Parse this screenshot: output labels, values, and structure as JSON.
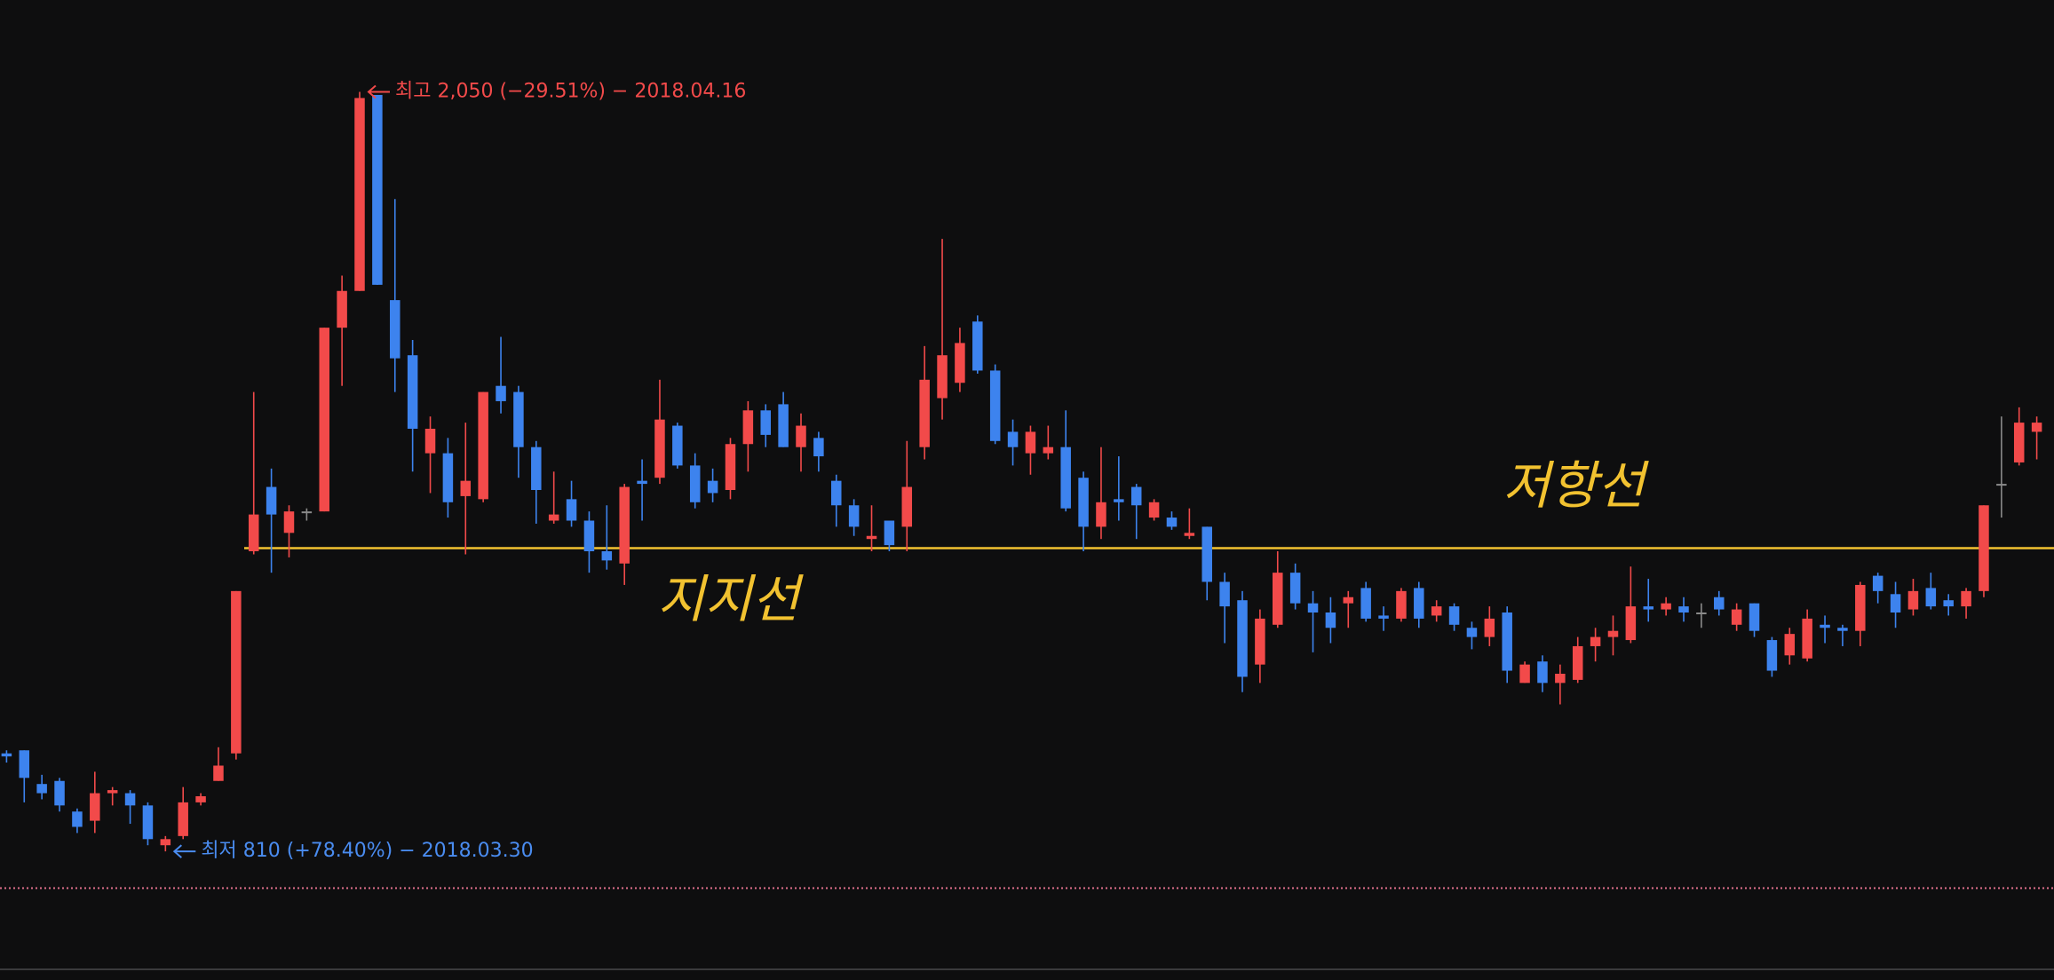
{
  "chart_data": {
    "type": "candlestick",
    "ylim": [
      600,
      2200
    ],
    "up_color": "#f24a4a",
    "down_color": "#3d83ee",
    "flat_color": "#8a8a8a",
    "open": [
      970,
      975,
      920,
      925,
      875,
      860,
      905,
      905,
      885,
      820,
      835,
      890,
      925,
      970,
      1300,
      1405,
      1330,
      1365,
      1365,
      1665,
      1725,
      2045,
      1710,
      1620,
      1460,
      1460,
      1390,
      1385,
      1570,
      1560,
      1470,
      1350,
      1385,
      1350,
      1300,
      1280,
      1415,
      1420,
      1505,
      1440,
      1415,
      1400,
      1475,
      1530,
      1540,
      1470,
      1485,
      1415,
      1375,
      1320,
      1350,
      1340,
      1470,
      1550,
      1575,
      1675,
      1595,
      1495,
      1460,
      1460,
      1470,
      1420,
      1340,
      1385,
      1405,
      1355,
      1355,
      1325,
      1340,
      1250,
      1220,
      1115,
      1180,
      1265,
      1215,
      1200,
      1215,
      1240,
      1195,
      1190,
      1240,
      1195,
      1210,
      1175,
      1160,
      1200,
      1085,
      1120,
      1085,
      1090,
      1145,
      1160,
      1155,
      1210,
      1205,
      1210,
      1200,
      1225,
      1180,
      1215,
      1155,
      1130,
      1125,
      1180,
      1175,
      1170,
      1260,
      1230,
      1205,
      1240,
      1220,
      1210,
      1235,
      1410,
      1445,
      1495
    ],
    "high": [
      975,
      975,
      935,
      930,
      880,
      940,
      915,
      910,
      890,
      835,
      915,
      905,
      980,
      1235,
      1560,
      1435,
      1375,
      1370,
      1665,
      1750,
      2050,
      2045,
      1875,
      1645,
      1520,
      1485,
      1510,
      1560,
      1650,
      1570,
      1480,
      1430,
      1415,
      1365,
      1375,
      1410,
      1450,
      1580,
      1510,
      1460,
      1435,
      1485,
      1545,
      1540,
      1560,
      1525,
      1495,
      1425,
      1385,
      1375,
      1350,
      1480,
      1635,
      1810,
      1665,
      1685,
      1605,
      1515,
      1505,
      1505,
      1530,
      1430,
      1470,
      1455,
      1410,
      1385,
      1365,
      1370,
      1340,
      1265,
      1235,
      1205,
      1300,
      1280,
      1235,
      1225,
      1235,
      1250,
      1210,
      1240,
      1250,
      1220,
      1215,
      1185,
      1210,
      1210,
      1120,
      1130,
      1115,
      1160,
      1175,
      1195,
      1275,
      1255,
      1225,
      1225,
      1215,
      1235,
      1215,
      1215,
      1160,
      1175,
      1205,
      1195,
      1180,
      1250,
      1265,
      1250,
      1255,
      1265,
      1230,
      1240,
      1375,
      1520,
      1535,
      1520
    ],
    "low": [
      955,
      890,
      895,
      875,
      840,
      840,
      885,
      855,
      820,
      810,
      830,
      885,
      925,
      960,
      1295,
      1265,
      1290,
      1350,
      1365,
      1570,
      1725,
      1735,
      1560,
      1430,
      1395,
      1355,
      1295,
      1380,
      1525,
      1420,
      1345,
      1345,
      1340,
      1265,
      1270,
      1245,
      1350,
      1410,
      1435,
      1370,
      1380,
      1385,
      1430,
      1470,
      1470,
      1430,
      1430,
      1340,
      1325,
      1300,
      1300,
      1300,
      1450,
      1515,
      1560,
      1590,
      1475,
      1440,
      1425,
      1450,
      1365,
      1300,
      1320,
      1350,
      1320,
      1350,
      1335,
      1320,
      1220,
      1150,
      1070,
      1085,
      1175,
      1205,
      1135,
      1150,
      1175,
      1185,
      1170,
      1185,
      1175,
      1185,
      1170,
      1140,
      1145,
      1085,
      1085,
      1070,
      1050,
      1085,
      1120,
      1130,
      1150,
      1185,
      1195,
      1185,
      1175,
      1195,
      1170,
      1160,
      1095,
      1115,
      1120,
      1150,
      1145,
      1145,
      1215,
      1175,
      1195,
      1205,
      1195,
      1190,
      1225,
      1355,
      1440,
      1450
    ],
    "close": [
      965,
      930,
      905,
      885,
      850,
      905,
      910,
      885,
      830,
      830,
      890,
      900,
      950,
      1235,
      1360,
      1360,
      1365,
      1365,
      1665,
      1725,
      2040,
      1735,
      1615,
      1500,
      1500,
      1380,
      1415,
      1560,
      1545,
      1470,
      1400,
      1360,
      1350,
      1300,
      1285,
      1405,
      1410,
      1515,
      1440,
      1380,
      1395,
      1475,
      1530,
      1490,
      1470,
      1505,
      1455,
      1375,
      1340,
      1325,
      1310,
      1405,
      1580,
      1620,
      1640,
      1595,
      1480,
      1470,
      1495,
      1470,
      1370,
      1340,
      1380,
      1380,
      1375,
      1380,
      1340,
      1330,
      1250,
      1210,
      1095,
      1190,
      1265,
      1215,
      1200,
      1175,
      1225,
      1190,
      1190,
      1235,
      1190,
      1210,
      1180,
      1160,
      1190,
      1105,
      1115,
      1085,
      1100,
      1145,
      1160,
      1170,
      1210,
      1205,
      1215,
      1200,
      1200,
      1205,
      1205,
      1170,
      1105,
      1165,
      1190,
      1175,
      1170,
      1245,
      1235,
      1200,
      1235,
      1210,
      1210,
      1235,
      1375,
      1410,
      1510,
      1510
    ],
    "lines": [
      {
        "value": 1305,
        "color": "#f2c230",
        "style": "solid"
      },
      {
        "value": 750,
        "color": "#e0708c",
        "style": "dotted"
      }
    ],
    "high_annotation": {
      "text": "최고 2,050 (−29.51%) − 2018.04.16",
      "value": 2050,
      "color": "#f24a4a"
    },
    "low_annotation": {
      "text": "최저 810 (+78.40%) − 2018.03.30",
      "value": 810,
      "color": "#4a8cf0"
    },
    "handwritten": [
      "지지선",
      "저항선"
    ]
  }
}
